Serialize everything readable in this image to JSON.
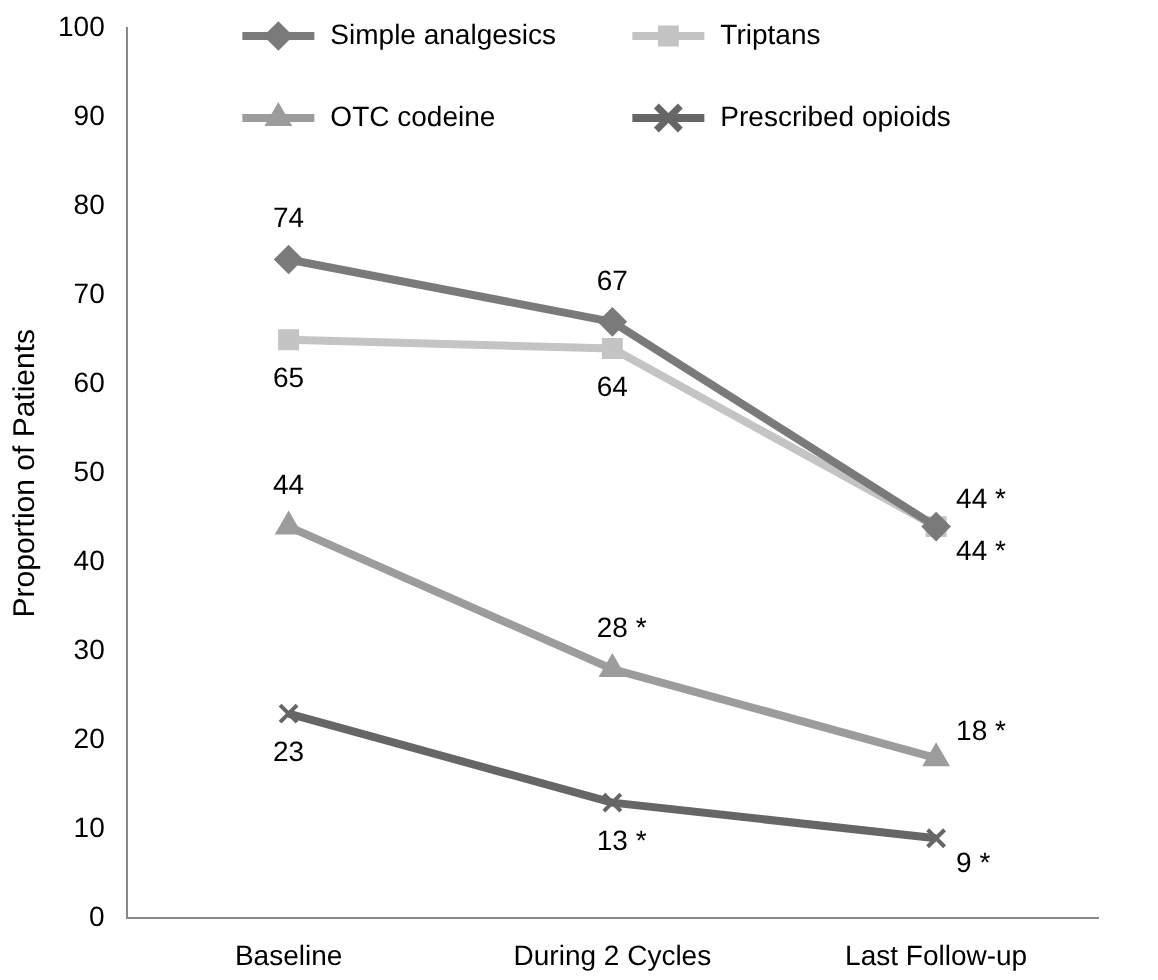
{
  "chart_data": {
    "type": "line",
    "ylabel": "Proportion of Patients",
    "categories": [
      "Baseline",
      "During 2 Cycles",
      "Last Follow-up"
    ],
    "series": [
      {
        "name": "Simple analgesics",
        "color": "#7a7a7a",
        "marker": "diamond",
        "values": [
          74,
          67,
          44
        ],
        "value_labels": [
          "74",
          "67",
          "44 *"
        ]
      },
      {
        "name": "Triptans",
        "color": "#c4c4c4",
        "marker": "square",
        "values": [
          65,
          64,
          44
        ],
        "value_labels": [
          "65",
          "64",
          "44 *"
        ]
      },
      {
        "name": "OTC codeine",
        "color": "#9c9c9c",
        "marker": "triangle",
        "values": [
          44,
          28,
          18
        ],
        "value_labels": [
          "44",
          "28 *",
          "18 *"
        ]
      },
      {
        "name": "Prescribed opioids",
        "color": "#666666",
        "marker": "cross",
        "values": [
          23,
          13,
          9
        ],
        "value_labels": [
          "23",
          "13 *",
          "9 *"
        ]
      }
    ],
    "ylim": [
      0,
      100
    ],
    "yticks": [
      0,
      10,
      20,
      30,
      40,
      50,
      60,
      70,
      80,
      90,
      100
    ],
    "grid": false,
    "legend": "top",
    "line_style": "solid"
  }
}
